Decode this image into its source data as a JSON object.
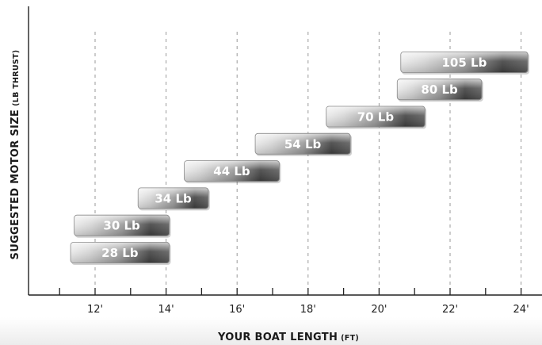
{
  "chart_data": {
    "type": "bar",
    "orientation": "horizontal-range",
    "xlabel": "YOUR BOAT LENGTH",
    "xlabel_unit": "(FT)",
    "ylabel": "SUGGESTED MOTOR SIZE",
    "ylabel_unit": "(LB THRUST)",
    "xlim": [
      10.2,
      24.5
    ],
    "x_ticks": [
      11,
      12,
      13,
      14,
      15,
      16,
      17,
      18,
      19,
      20,
      21,
      22,
      23,
      24
    ],
    "x_tick_labels": [
      {
        "value": 12,
        "label": "12'"
      },
      {
        "value": 14,
        "label": "14'"
      },
      {
        "value": 16,
        "label": "16'"
      },
      {
        "value": 18,
        "label": "18'"
      },
      {
        "value": 20,
        "label": "20'"
      },
      {
        "value": 22,
        "label": "22'"
      },
      {
        "value": 24,
        "label": "24'"
      }
    ],
    "grid": "vertical-dashed",
    "series": [
      {
        "label": "28 Lb",
        "start": 11.3,
        "end": 14.1
      },
      {
        "label": "30 Lb",
        "start": 11.4,
        "end": 14.1
      },
      {
        "label": "34 Lb",
        "start": 13.2,
        "end": 15.2
      },
      {
        "label": "44 Lb",
        "start": 14.5,
        "end": 17.2
      },
      {
        "label": "54 Lb",
        "start": 16.5,
        "end": 19.2
      },
      {
        "label": "70 Lb",
        "start": 18.5,
        "end": 21.3
      },
      {
        "label": "80 Lb",
        "start": 20.5,
        "end": 22.9
      },
      {
        "label": "105 Lb",
        "start": 20.6,
        "end": 24.2
      }
    ]
  }
}
